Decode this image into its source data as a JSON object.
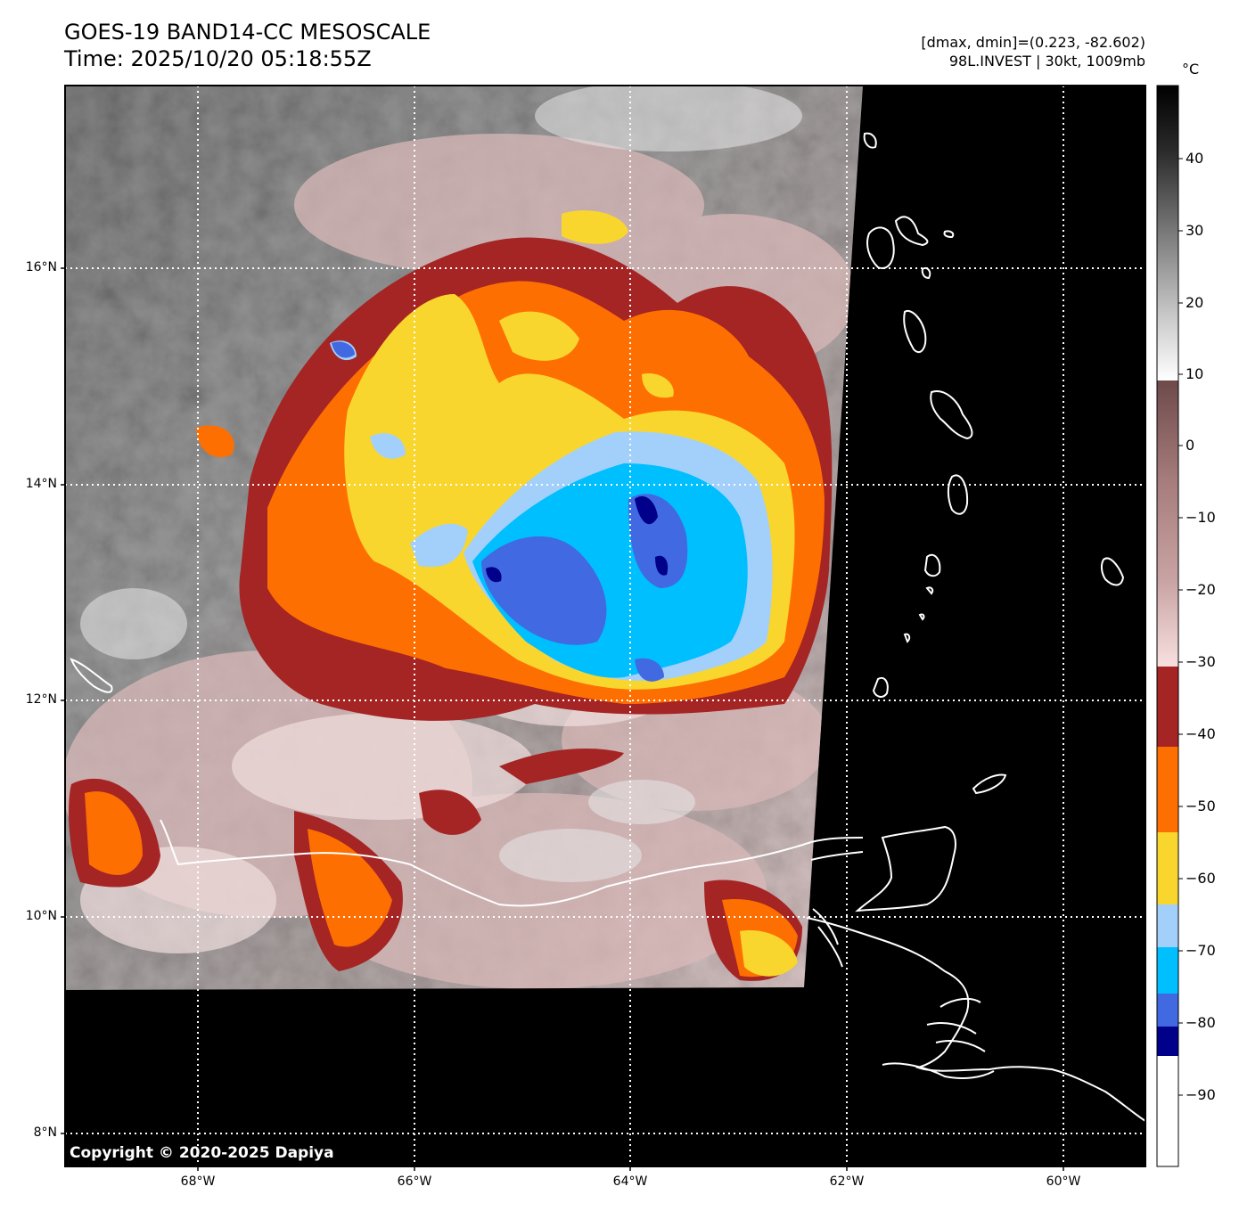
{
  "header": {
    "title": "GOES-19 BAND14-CC MESOSCALE",
    "time": "Time: 2025/10/20 05:18:55Z",
    "stats": "[dmax, dmin]=(0.223, -82.602)",
    "storm": "98L.INVEST | 30kt, 1009mb"
  },
  "map": {
    "lat_labels": [
      "16°N",
      "14°N",
      "12°N",
      "10°N",
      "8°N"
    ],
    "lon_labels": [
      "68°W",
      "66°W",
      "64°W",
      "62°W",
      "60°W"
    ],
    "lat_values": [
      16,
      14,
      12,
      10,
      8
    ],
    "lon_values": [
      -68,
      -66,
      -64,
      -62,
      -60
    ],
    "lon_range": [
      -69.25,
      -59.25
    ],
    "lat_range": [
      7.7,
      17.7
    ],
    "no_data_color": "#000000",
    "coastline_color": "#ffffff",
    "grid": "dotted white"
  },
  "colorbar": {
    "unit": "°C",
    "labels": [
      "40",
      "30",
      "20",
      "10",
      "0",
      "−10",
      "−20",
      "−30",
      "−40",
      "−50",
      "−60",
      "−70",
      "−80",
      "−90"
    ],
    "label_values": [
      40,
      30,
      20,
      10,
      0,
      -10,
      -20,
      -30,
      -40,
      -50,
      -60,
      -70,
      -80,
      -90
    ],
    "range": [
      -100,
      50
    ],
    "segments": [
      {
        "from": -100,
        "to": -86,
        "color": "#ffffff"
      },
      {
        "from": -86,
        "to": -82,
        "color": "#00008b"
      },
      {
        "from": -82,
        "to": -78,
        "color": "#4169e1"
      },
      {
        "from": -78,
        "to": -71,
        "color": "#00bfff"
      },
      {
        "from": -71,
        "to": -64,
        "color": "#a3d0fa"
      },
      {
        "from": -64,
        "to": -54,
        "color": "#f9d62e"
      },
      {
        "from": -54,
        "to": -43,
        "color": "#fe6f01"
      },
      {
        "from": -43,
        "to": -32,
        "color": "#a52424"
      },
      {
        "from": -32,
        "to": 9,
        "gradient": [
          "#f8e0e0",
          "#c9a3a3",
          "#a67c7c",
          "#6e4a4a"
        ]
      },
      {
        "from": 9,
        "to": 50,
        "gradient": [
          "#ffffff",
          "#c8c8c8",
          "#7a7a7a",
          "#2a2a2a",
          "#000000"
        ]
      }
    ]
  },
  "copyright": "Copyright © 2020-2025 Dapiya"
}
